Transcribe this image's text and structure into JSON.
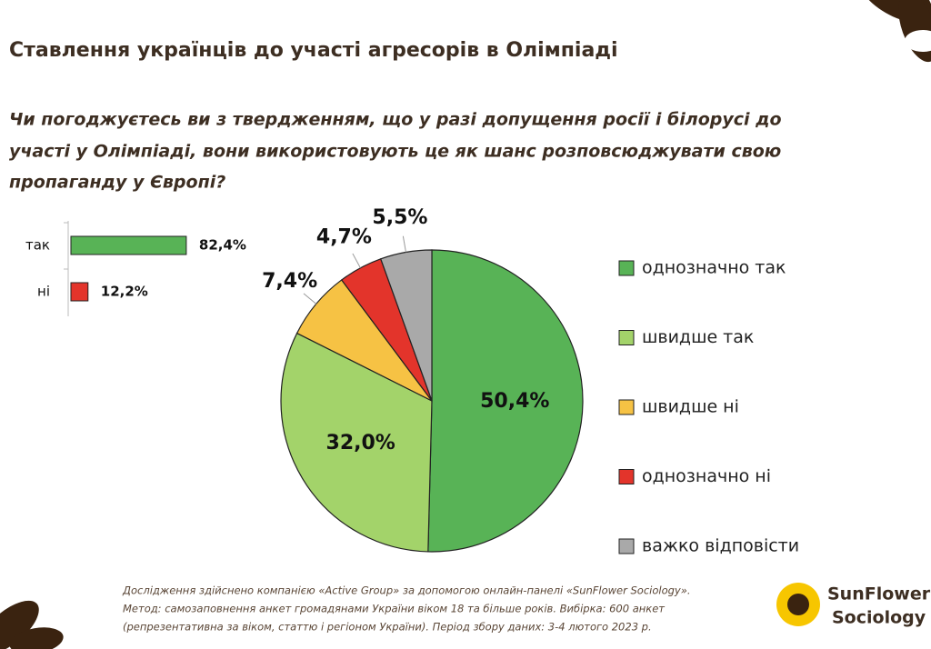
{
  "title": "Ставлення українців до участі агресорів в Олімпіаді",
  "question": [
    "Чи погоджуєтесь ви з твердженням, що у разі допущення росії і білорусі до",
    "участі у Олімпіаді, вони використовують це як шанс розповсюджувати свою",
    "пропаганду у Європі?"
  ],
  "chart_data": [
    {
      "type": "pie",
      "categories": [
        "однозначно так",
        "швидше так",
        "швидше ні",
        "однозначно ні",
        "важко відповісти"
      ],
      "values": [
        50.4,
        32.0,
        7.4,
        4.7,
        5.5
      ],
      "value_labels": [
        "50,4%",
        "32,0%",
        "7,4%",
        "4,7%",
        "5,5%"
      ],
      "colors": [
        "#58b356",
        "#a3d36a",
        "#f6c244",
        "#e3342b",
        "#a9a9a9"
      ],
      "legend": "right"
    },
    {
      "type": "bar",
      "categories": [
        "так",
        "ні"
      ],
      "values": [
        82.4,
        12.2
      ],
      "value_labels": [
        "82,4%",
        "12,2%"
      ],
      "colors": [
        "#58b356",
        "#e3342b"
      ]
    }
  ],
  "footer": [
    "Дослідження здійснено компанією «Active Group» за допомогою онлайн-панелі «SunFlower Sociology».",
    "Метод: самозаповнення анкет громадянами України віком 18 та більше років. Вибірка: 600 анкет",
    "(репрезентативна за віком, статтю і регіоном України). Період збору даних: 3-4 лютого 2023 р."
  ],
  "logo": [
    "SunFlower",
    "Sociology"
  ]
}
